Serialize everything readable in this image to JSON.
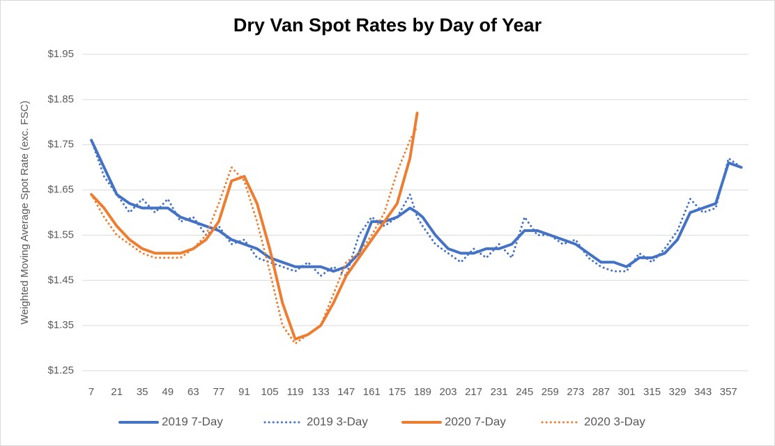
{
  "chart_data": {
    "type": "line",
    "title": "Dry Van Spot Rates by Day of Year",
    "y_label": "Weighted Moving Average Spot Rate (exc. FSC)",
    "x": [
      7,
      14,
      21,
      28,
      35,
      42,
      49,
      56,
      63,
      70,
      77,
      84,
      91,
      98,
      105,
      112,
      119,
      126,
      133,
      140,
      147,
      154,
      161,
      168,
      175,
      182,
      186,
      189,
      196,
      203,
      210,
      217,
      224,
      231,
      238,
      245,
      252,
      259,
      266,
      273,
      280,
      287,
      294,
      301,
      308,
      315,
      322,
      329,
      336,
      343,
      350,
      357,
      364
    ],
    "series": [
      {
        "name": "2019 7-Day",
        "color": "#4472c4",
        "style": "solid",
        "values": [
          1.76,
          1.7,
          1.64,
          1.62,
          1.61,
          1.61,
          1.61,
          1.59,
          1.58,
          1.57,
          1.56,
          1.54,
          1.53,
          1.52,
          1.5,
          1.49,
          1.48,
          1.48,
          1.48,
          1.47,
          1.48,
          1.51,
          1.58,
          1.58,
          1.59,
          1.61,
          1.6,
          1.59,
          1.55,
          1.52,
          1.51,
          1.51,
          1.52,
          1.52,
          1.53,
          1.56,
          1.56,
          1.55,
          1.54,
          1.53,
          1.51,
          1.49,
          1.49,
          1.48,
          1.5,
          1.5,
          1.51,
          1.54,
          1.6,
          1.61,
          1.62,
          1.71,
          1.7
        ]
      },
      {
        "name": "2019 3-Day",
        "color": "#4472c4",
        "style": "dotted",
        "values": [
          1.76,
          1.68,
          1.64,
          1.6,
          1.63,
          1.6,
          1.63,
          1.58,
          1.59,
          1.55,
          1.57,
          1.53,
          1.54,
          1.5,
          1.49,
          1.48,
          1.47,
          1.49,
          1.46,
          1.48,
          1.46,
          1.55,
          1.59,
          1.57,
          1.59,
          1.64,
          1.59,
          1.57,
          1.53,
          1.51,
          1.49,
          1.52,
          1.5,
          1.53,
          1.5,
          1.59,
          1.55,
          1.55,
          1.53,
          1.54,
          1.5,
          1.48,
          1.47,
          1.47,
          1.51,
          1.49,
          1.52,
          1.56,
          1.63,
          1.6,
          1.61,
          1.72,
          1.7
        ]
      },
      {
        "name": "2020 7-Day",
        "color": "#ed7d31",
        "style": "solid",
        "values": [
          1.64,
          1.61,
          1.57,
          1.54,
          1.52,
          1.51,
          1.51,
          1.51,
          1.52,
          1.54,
          1.58,
          1.67,
          1.68,
          1.62,
          1.52,
          1.4,
          1.32,
          1.33,
          1.35,
          1.4,
          1.46,
          1.5,
          1.54,
          1.58,
          1.62,
          1.72,
          1.82,
          null,
          null,
          null,
          null,
          null,
          null,
          null,
          null,
          null,
          null,
          null,
          null,
          null,
          null,
          null,
          null,
          null,
          null,
          null,
          null,
          null,
          null,
          null,
          null,
          null,
          null
        ]
      },
      {
        "name": "2020 3-Day",
        "color": "#ed7d31",
        "style": "dotted",
        "values": [
          1.64,
          1.59,
          1.55,
          1.53,
          1.51,
          1.5,
          1.5,
          1.5,
          1.52,
          1.55,
          1.62,
          1.7,
          1.67,
          1.58,
          1.47,
          1.35,
          1.31,
          1.33,
          1.35,
          1.42,
          1.49,
          1.51,
          1.55,
          1.6,
          1.69,
          1.76,
          1.79,
          null,
          null,
          null,
          null,
          null,
          null,
          null,
          null,
          null,
          null,
          null,
          null,
          null,
          null,
          null,
          null,
          null,
          null,
          null,
          null,
          null,
          null,
          null,
          null,
          null,
          null
        ]
      }
    ],
    "xlim": [
      2,
      368
    ],
    "xticks": [
      7,
      21,
      35,
      49,
      63,
      77,
      91,
      105,
      119,
      133,
      147,
      161,
      175,
      189,
      203,
      217,
      231,
      245,
      259,
      273,
      287,
      301,
      315,
      329,
      343,
      357
    ],
    "ylim": [
      1.25,
      1.95
    ],
    "yticks": [
      {
        "value": 1.25,
        "label": "$1.25"
      },
      {
        "value": 1.35,
        "label": "$1.35"
      },
      {
        "value": 1.45,
        "label": "$1.45"
      },
      {
        "value": 1.55,
        "label": "$1.55"
      },
      {
        "value": 1.65,
        "label": "$1.65"
      },
      {
        "value": 1.75,
        "label": "$1.75"
      },
      {
        "value": 1.85,
        "label": "$1.85"
      },
      {
        "value": 1.95,
        "label": "$1.95"
      }
    ],
    "grid": true,
    "legend": "bottom"
  }
}
